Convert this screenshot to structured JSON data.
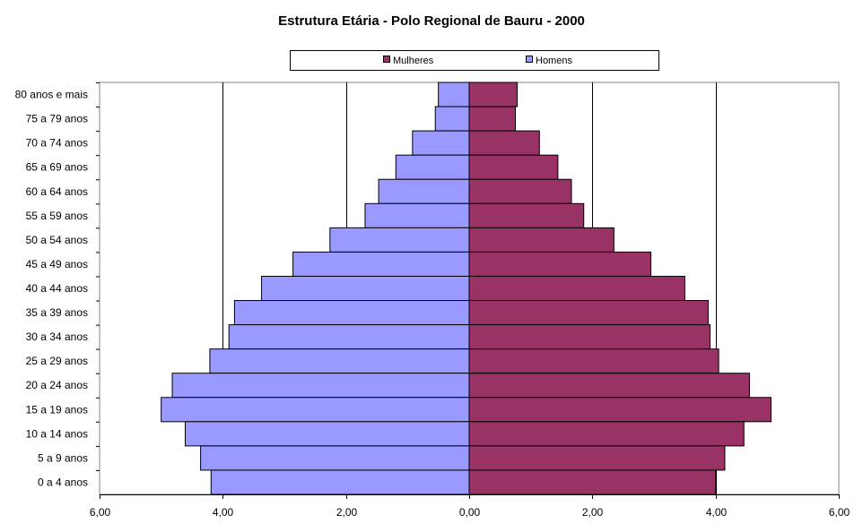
{
  "chart_data": {
    "type": "bar",
    "orientation": "horizontal",
    "title": "Estrutura Etária - Polo Regional de Bauru - 2000",
    "categories": [
      "80 anos e mais",
      "75 a 79 anos",
      "70 a 74 anos",
      "65 a 69 anos",
      "60 a 64 anos",
      "55 a 59 anos",
      "50 a 54 anos",
      "45 a 49 anos",
      "40 a 44 anos",
      "35 a 39 anos",
      "30 a 34 anos",
      "25 a 29 anos",
      "20 a 24 anos",
      "15 a 19 anos",
      "10 a 14 anos",
      "5 a 9 anos",
      "0 a 4 anos"
    ],
    "series": [
      {
        "name": "Mulheres",
        "color": "#993366",
        "side": "right",
        "values": [
          0.78,
          0.75,
          1.14,
          1.44,
          1.66,
          1.86,
          2.35,
          2.95,
          3.5,
          3.88,
          3.91,
          4.05,
          4.55,
          4.9,
          4.46,
          4.15,
          4.0
        ]
      },
      {
        "name": "Homens",
        "color": "#9999ff",
        "side": "left",
        "values": [
          0.5,
          0.55,
          0.92,
          1.19,
          1.47,
          1.69,
          2.26,
          2.86,
          3.37,
          3.81,
          3.9,
          4.21,
          4.82,
          5.0,
          4.61,
          4.36,
          4.19
        ]
      }
    ],
    "xlim": [
      -6,
      6
    ],
    "xticks": [
      -6,
      -4,
      -2,
      0,
      2,
      4,
      6
    ],
    "xtick_labels": [
      "6,00",
      "4,00",
      "2,00",
      "0,00",
      "2,00",
      "4,00",
      "6,00"
    ],
    "gridlines": [
      -4,
      -2,
      2,
      4
    ],
    "legend_position": "top"
  }
}
